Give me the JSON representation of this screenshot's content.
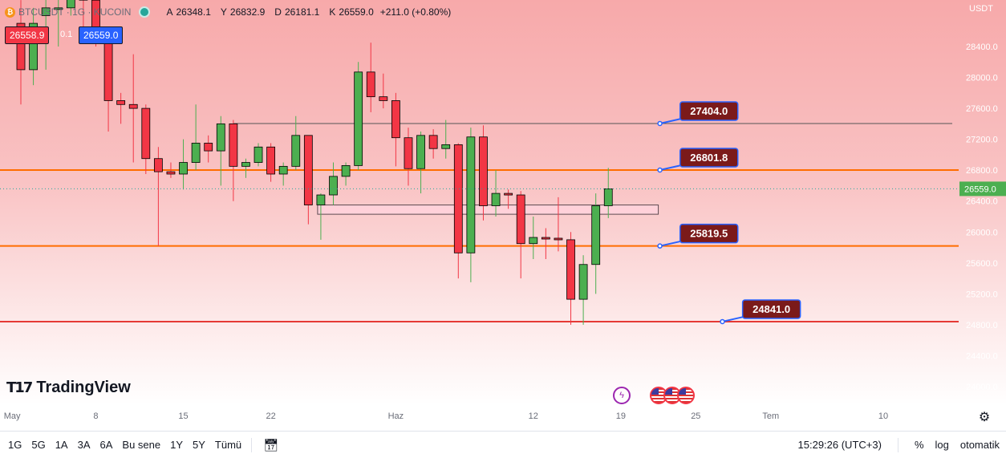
{
  "header": {
    "symbol": "BTCUSDT · 1G · KUCOIN",
    "ohlc": [
      {
        "label": "A",
        "value": "26348.1"
      },
      {
        "label": "Y",
        "value": "26832.9"
      },
      {
        "label": "D",
        "value": "26181.1"
      },
      {
        "label": "K",
        "value": "26559.0"
      }
    ],
    "change": "+211.0 (+0.80%)",
    "sell_price": "26558.9",
    "spread": "0.1",
    "buy_price": "26559.0",
    "currency": "USDT"
  },
  "branding": {
    "logo_text": "TradingView"
  },
  "bottom_bar": {
    "timeframes": [
      "1G",
      "5G",
      "1A",
      "3A",
      "6A",
      "Bu sene",
      "1Y",
      "5Y",
      "Tümü"
    ],
    "clock": "15:29:26 (UTC+3)",
    "percent_label": "%",
    "log_label": "log",
    "auto_label": "otomatik"
  },
  "colors": {
    "up": "#4caf50",
    "down": "#f23645",
    "level_line": "#ff6d00",
    "support_line": "#e53935",
    "label_bg": "#7b1a1a",
    "label_border": "#2962ff"
  },
  "chart_data": {
    "type": "candlestick",
    "ylim": [
      23700,
      28850
    ],
    "y_ticks": [
      24000,
      24400,
      24800,
      25200,
      25600,
      26000,
      26400,
      26800,
      27200,
      27600,
      28000,
      28400
    ],
    "y_tick_labels": [
      "24000.0",
      "24400.0",
      "24800.0",
      "25200.0",
      "25600.0",
      "26000.0",
      "26400.0",
      "26800.0",
      "27200.0",
      "27600.0",
      "28000.0",
      "28400.0"
    ],
    "last_price": 26559.0,
    "last_price_label": "26559.0",
    "x_ticks": [
      {
        "label": "May",
        "index": -0.7
      },
      {
        "label": "8",
        "index": 6
      },
      {
        "label": "15",
        "index": 13
      },
      {
        "label": "22",
        "index": 20
      },
      {
        "label": "Haz",
        "index": 30
      },
      {
        "label": "12",
        "index": 41
      },
      {
        "label": "19",
        "index": 48
      },
      {
        "label": "25",
        "index": 54
      },
      {
        "label": "Tem",
        "index": 60
      },
      {
        "label": "10",
        "index": 69
      }
    ],
    "candles": [
      {
        "date": "2023-05-01",
        "o": 28700,
        "h": 29000,
        "l": 27650,
        "c": 28100
      },
      {
        "date": "2023-05-02",
        "o": 28100,
        "h": 28900,
        "l": 27900,
        "c": 28700
      },
      {
        "date": "2023-05-03",
        "o": 28800,
        "h": 29200,
        "l": 28100,
        "c": 28900
      },
      {
        "date": "2023-05-04",
        "o": 28900,
        "h": 29300,
        "l": 28400,
        "c": 28900
      },
      {
        "date": "2023-05-05",
        "o": 28900,
        "h": 29700,
        "l": 28800,
        "c": 29500
      },
      {
        "date": "2023-05-06",
        "o": 29500,
        "h": 29800,
        "l": 28600,
        "c": 29000
      },
      {
        "date": "2023-05-07",
        "o": 29000,
        "h": 29200,
        "l": 28400,
        "c": 28500
      },
      {
        "date": "2023-05-08",
        "o": 28500,
        "h": 28600,
        "l": 27300,
        "c": 27700
      },
      {
        "date": "2023-05-09",
        "o": 27700,
        "h": 27800,
        "l": 27400,
        "c": 27650
      },
      {
        "date": "2023-05-10",
        "o": 27650,
        "h": 28300,
        "l": 26900,
        "c": 27600
      },
      {
        "date": "2023-05-11",
        "o": 27600,
        "h": 27650,
        "l": 26750,
        "c": 26950
      },
      {
        "date": "2023-05-12",
        "o": 26950,
        "h": 27100,
        "l": 25820,
        "c": 26780
      },
      {
        "date": "2023-05-13",
        "o": 26780,
        "h": 26900,
        "l": 26700,
        "c": 26750
      },
      {
        "date": "2023-05-14",
        "o": 26750,
        "h": 27200,
        "l": 26550,
        "c": 26900
      },
      {
        "date": "2023-05-15",
        "o": 26900,
        "h": 27650,
        "l": 26800,
        "c": 27150
      },
      {
        "date": "2023-05-16",
        "o": 27150,
        "h": 27250,
        "l": 26900,
        "c": 27050
      },
      {
        "date": "2023-05-17",
        "o": 27050,
        "h": 27500,
        "l": 26600,
        "c": 27400
      },
      {
        "date": "2023-05-18",
        "o": 27400,
        "h": 27450,
        "l": 26400,
        "c": 26850
      },
      {
        "date": "2023-05-19",
        "o": 26850,
        "h": 26950,
        "l": 26700,
        "c": 26900
      },
      {
        "date": "2023-05-20",
        "o": 26900,
        "h": 27150,
        "l": 26850,
        "c": 27100
      },
      {
        "date": "2023-05-21",
        "o": 27100,
        "h": 27150,
        "l": 26650,
        "c": 26750
      },
      {
        "date": "2023-05-22",
        "o": 26750,
        "h": 26900,
        "l": 26600,
        "c": 26850
      },
      {
        "date": "2023-05-23",
        "o": 26850,
        "h": 27500,
        "l": 26800,
        "c": 27250
      },
      {
        "date": "2023-05-24",
        "o": 27250,
        "h": 27250,
        "l": 26100,
        "c": 26350
      },
      {
        "date": "2023-05-25",
        "o": 26350,
        "h": 26500,
        "l": 25900,
        "c": 26480
      },
      {
        "date": "2023-05-26",
        "o": 26480,
        "h": 26900,
        "l": 26350,
        "c": 26720
      },
      {
        "date": "2023-05-27",
        "o": 26720,
        "h": 26900,
        "l": 26600,
        "c": 26860
      },
      {
        "date": "2023-05-28",
        "o": 26860,
        "h": 28200,
        "l": 26800,
        "c": 28070
      },
      {
        "date": "2023-05-29",
        "o": 28070,
        "h": 28450,
        "l": 27550,
        "c": 27750
      },
      {
        "date": "2023-05-30",
        "o": 27750,
        "h": 28050,
        "l": 27600,
        "c": 27700
      },
      {
        "date": "2023-05-31",
        "o": 27700,
        "h": 27800,
        "l": 26850,
        "c": 27220
      },
      {
        "date": "2023-06-01",
        "o": 27220,
        "h": 27350,
        "l": 26600,
        "c": 26820
      },
      {
        "date": "2023-06-02",
        "o": 26820,
        "h": 27300,
        "l": 26500,
        "c": 27250
      },
      {
        "date": "2023-06-03",
        "o": 27250,
        "h": 27330,
        "l": 26950,
        "c": 27080
      },
      {
        "date": "2023-06-04",
        "o": 27080,
        "h": 27450,
        "l": 26950,
        "c": 27130
      },
      {
        "date": "2023-06-05",
        "o": 27130,
        "h": 27150,
        "l": 25400,
        "c": 25730
      },
      {
        "date": "2023-06-06",
        "o": 25730,
        "h": 27350,
        "l": 25350,
        "c": 27230
      },
      {
        "date": "2023-06-07",
        "o": 27230,
        "h": 27380,
        "l": 26150,
        "c": 26340
      },
      {
        "date": "2023-06-08",
        "o": 26340,
        "h": 26800,
        "l": 26200,
        "c": 26500
      },
      {
        "date": "2023-06-09",
        "o": 26500,
        "h": 26550,
        "l": 26300,
        "c": 26480
      },
      {
        "date": "2023-06-10",
        "o": 26480,
        "h": 26530,
        "l": 25400,
        "c": 25850
      },
      {
        "date": "2023-06-11",
        "o": 25850,
        "h": 26200,
        "l": 25650,
        "c": 25930
      },
      {
        "date": "2023-06-12",
        "o": 25930,
        "h": 26050,
        "l": 25650,
        "c": 25920
      },
      {
        "date": "2023-06-13",
        "o": 25920,
        "h": 26450,
        "l": 25750,
        "c": 25900
      },
      {
        "date": "2023-06-14",
        "o": 25900,
        "h": 26000,
        "l": 24800,
        "c": 25130
      },
      {
        "date": "2023-06-15",
        "o": 25130,
        "h": 25700,
        "l": 24800,
        "c": 25580
      },
      {
        "date": "2023-06-16",
        "o": 25580,
        "h": 26500,
        "l": 25200,
        "c": 26340
      },
      {
        "date": "2023-06-17",
        "o": 26340,
        "h": 26830,
        "l": 26180,
        "c": 26559
      }
    ],
    "levels": [
      {
        "value": 27404.0,
        "label": "27404.0",
        "from_index": 17,
        "anchor_index": 51,
        "label_index": 53,
        "color": "#555555"
      },
      {
        "value": 26801.8,
        "label": "26801.8",
        "from_index": -1,
        "anchor_index": 51,
        "label_index": 53,
        "color": "#ff6d00"
      },
      {
        "value": 25819.5,
        "label": "25819.5",
        "from_index": -1,
        "anchor_index": 51,
        "label_index": 53,
        "color": "#ff6d00"
      },
      {
        "value": 24841.0,
        "label": "24841.0",
        "from_index": -1,
        "anchor_index": 56,
        "label_index": 58,
        "color": "#e53935"
      }
    ],
    "zone": {
      "top": 26350,
      "bottom": 26230,
      "from_index": 24,
      "to_index": 51
    }
  }
}
